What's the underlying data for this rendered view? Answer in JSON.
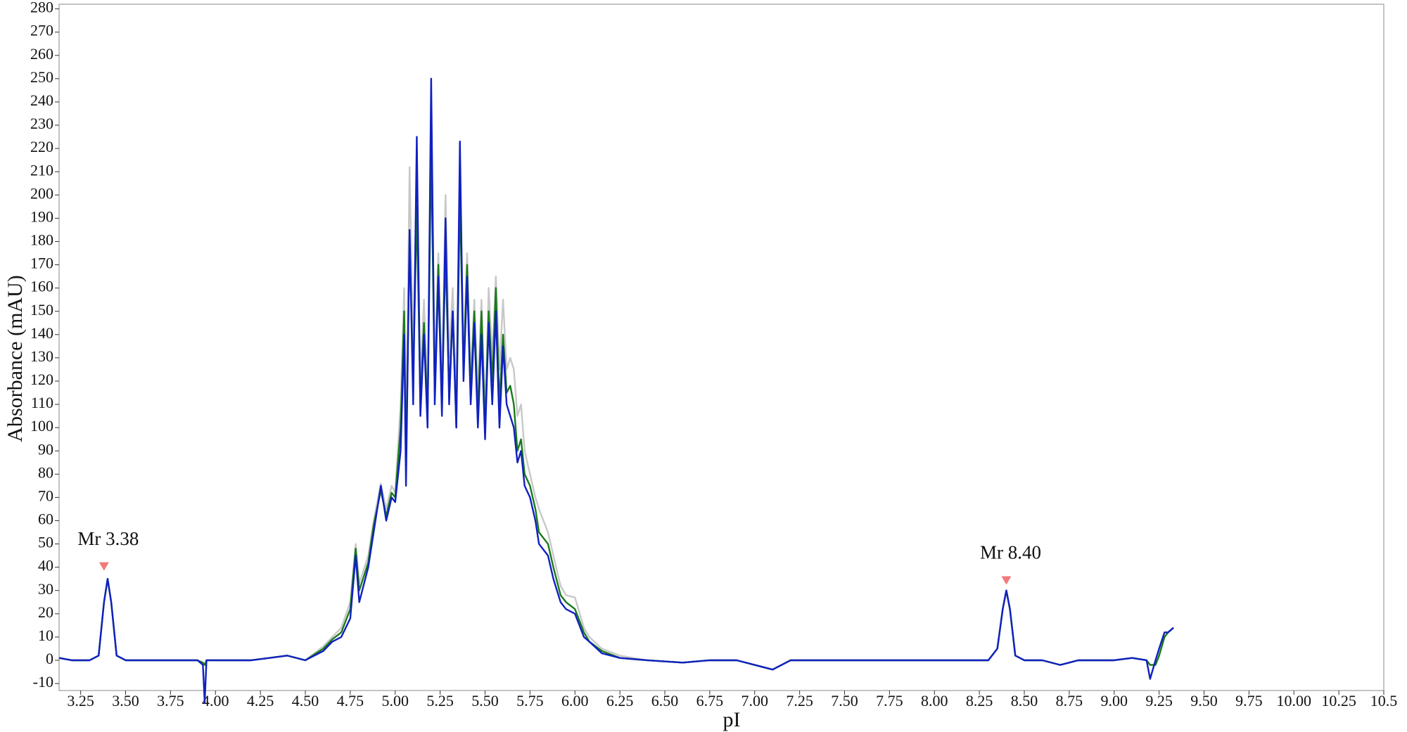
{
  "chart_data": {
    "type": "line",
    "x_label": "pI",
    "y_label": "Absorbance (mAU)",
    "xlim": [
      3.13,
      10.5
    ],
    "ylim": [
      -13,
      282
    ],
    "xticks": [
      3.25,
      {
        "value": 3.5,
        "label": "3.50"
      },
      3.75,
      {
        "value": 4,
        "label": "4.00"
      },
      4.25,
      {
        "value": 4.5,
        "label": "4.50"
      },
      4.75,
      {
        "value": 5,
        "label": "5.00"
      },
      5.25,
      {
        "value": 5.5,
        "label": "5.50"
      },
      5.75,
      {
        "value": 6,
        "label": "6.00"
      },
      6.25,
      {
        "value": 6.5,
        "label": "6.50"
      },
      6.75,
      {
        "value": 7,
        "label": "7.00"
      },
      7.25,
      {
        "value": 7.5,
        "label": "7.50"
      },
      7.75,
      {
        "value": 8,
        "label": "8.00"
      },
      8.25,
      {
        "value": 8.5,
        "label": "8.50"
      },
      8.75,
      {
        "value": 9,
        "label": "9.00"
      },
      9.25,
      {
        "value": 9.5,
        "label": "9.50"
      },
      9.75,
      {
        "value": 10,
        "label": "10.00"
      },
      10.25,
      10.5
    ],
    "yticks": [
      -10,
      0,
      10,
      20,
      30,
      40,
      50,
      60,
      70,
      80,
      90,
      100,
      110,
      120,
      130,
      140,
      150,
      160,
      170,
      180,
      190,
      200,
      210,
      220,
      230,
      240,
      250,
      260,
      270,
      280
    ],
    "grid": false,
    "x": [
      3.13,
      3.2,
      3.3,
      3.35,
      3.38,
      3.4,
      3.42,
      3.45,
      3.5,
      3.7,
      3.9,
      3.93,
      3.94,
      3.95,
      4.2,
      4.4,
      4.5,
      4.6,
      4.65,
      4.7,
      4.75,
      4.78,
      4.8,
      4.85,
      4.88,
      4.92,
      4.95,
      4.98,
      5.0,
      5.03,
      5.05,
      5.06,
      5.08,
      5.1,
      5.12,
      5.14,
      5.16,
      5.18,
      5.2,
      5.22,
      5.24,
      5.26,
      5.28,
      5.3,
      5.32,
      5.34,
      5.36,
      5.38,
      5.4,
      5.42,
      5.44,
      5.46,
      5.48,
      5.5,
      5.52,
      5.54,
      5.56,
      5.58,
      5.6,
      5.62,
      5.64,
      5.66,
      5.68,
      5.7,
      5.72,
      5.75,
      5.78,
      5.8,
      5.85,
      5.88,
      5.92,
      5.95,
      6.0,
      6.05,
      6.08,
      6.15,
      6.25,
      6.4,
      6.6,
      6.75,
      6.9,
      7.05,
      7.1,
      7.2,
      7.5,
      7.8,
      8.0,
      8.3,
      8.35,
      8.38,
      8.4,
      8.42,
      8.45,
      8.5,
      8.6,
      8.7,
      8.8,
      9.0,
      9.1,
      9.18,
      9.2,
      9.23,
      9.25,
      9.28,
      9.3,
      9.33
    ],
    "series": [
      {
        "color": "#c8c8c8",
        "values": [
          1,
          0,
          0,
          2,
          25,
          35,
          25,
          2,
          0,
          0,
          0,
          -1,
          -2,
          0,
          0,
          2,
          0,
          6,
          10,
          14,
          25,
          50,
          33,
          45,
          60,
          76,
          65,
          75,
          72,
          110,
          160,
          95,
          212,
          130,
          210,
          120,
          155,
          110,
          240,
          125,
          175,
          120,
          200,
          130,
          160,
          110,
          215,
          130,
          175,
          120,
          155,
          115,
          155,
          105,
          160,
          130,
          165,
          125,
          155,
          125,
          130,
          125,
          105,
          110,
          90,
          80,
          70,
          65,
          55,
          45,
          32,
          28,
          27,
          14,
          10,
          5,
          2,
          0,
          -1,
          0,
          0,
          -3,
          -4,
          0,
          0,
          0,
          0,
          0,
          5,
          22,
          30,
          22,
          2,
          0,
          0,
          -2,
          0,
          0,
          1,
          0,
          -2,
          -2,
          2,
          10,
          12,
          14
        ]
      },
      {
        "color": "#1a7a1a",
        "values": [
          1,
          0,
          0,
          2,
          25,
          35,
          25,
          2,
          0,
          0,
          0,
          -1,
          -2,
          0,
          0,
          2,
          0,
          5,
          9,
          12,
          22,
          48,
          30,
          42,
          58,
          73,
          62,
          72,
          70,
          100,
          150,
          85,
          180,
          120,
          195,
          110,
          145,
          105,
          220,
          115,
          170,
          110,
          175,
          115,
          150,
          100,
          200,
          125,
          170,
          115,
          150,
          105,
          150,
          100,
          150,
          120,
          160,
          110,
          140,
          115,
          118,
          110,
          90,
          95,
          80,
          75,
          65,
          55,
          50,
          40,
          28,
          25,
          22,
          12,
          8,
          4,
          1,
          0,
          -1,
          0,
          0,
          -3,
          -4,
          0,
          0,
          0,
          0,
          0,
          5,
          22,
          30,
          22,
          2,
          0,
          0,
          -2,
          0,
          0,
          1,
          0,
          -2,
          -2,
          2,
          10,
          12,
          14
        ]
      },
      {
        "color": "#1020c0",
        "values": [
          1,
          0,
          0,
          2,
          25,
          35,
          25,
          2,
          0,
          0,
          0,
          -2,
          -18,
          0,
          0,
          2,
          0,
          4,
          8,
          10,
          18,
          45,
          25,
          40,
          55,
          75,
          60,
          70,
          68,
          90,
          140,
          75,
          185,
          110,
          225,
          105,
          140,
          100,
          250,
          110,
          165,
          105,
          190,
          110,
          150,
          100,
          223,
          120,
          165,
          110,
          145,
          100,
          140,
          95,
          145,
          110,
          150,
          100,
          135,
          110,
          105,
          100,
          85,
          90,
          75,
          70,
          60,
          50,
          45,
          35,
          25,
          22,
          20,
          10,
          8,
          3,
          1,
          0,
          -1,
          0,
          0,
          -3,
          -4,
          0,
          0,
          0,
          0,
          0,
          5,
          22,
          30,
          22,
          2,
          0,
          0,
          -2,
          0,
          0,
          1,
          0,
          -8,
          0,
          5,
          12,
          12,
          14
        ]
      }
    ],
    "annotations": [
      {
        "text": "Mr 3.38",
        "x": 3.38,
        "y": 40
      },
      {
        "text": "Mr 8.40",
        "x": 8.4,
        "y": 34
      }
    ]
  }
}
